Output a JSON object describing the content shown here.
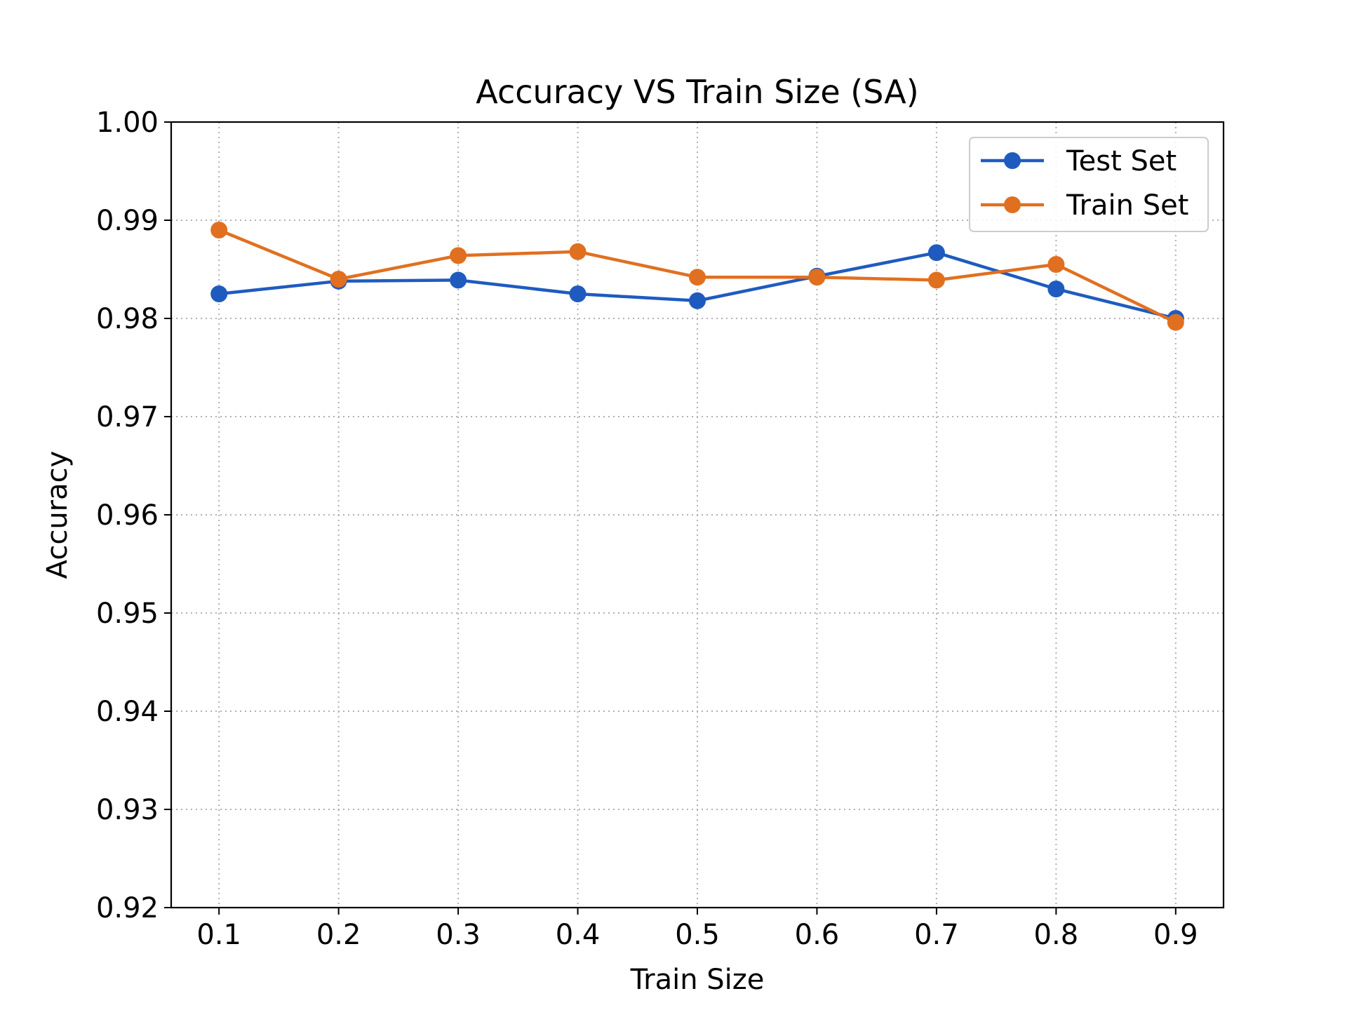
{
  "chart_data": {
    "type": "line",
    "title": "Accuracy VS Train Size (SA)",
    "xlabel": "Train Size",
    "ylabel": "Accuracy",
    "x": [
      0.1,
      0.2,
      0.3,
      0.4,
      0.5,
      0.6,
      0.7,
      0.8,
      0.9
    ],
    "x_tick_labels": [
      "0.1",
      "0.2",
      "0.3",
      "0.4",
      "0.5",
      "0.6",
      "0.7",
      "0.8",
      "0.9"
    ],
    "xlim": [
      0.06,
      0.94
    ],
    "ylim": [
      0.92,
      1.0
    ],
    "y_ticks": [
      0.92,
      0.93,
      0.94,
      0.95,
      0.96,
      0.97,
      0.98,
      0.99,
      1.0
    ],
    "y_tick_labels": [
      "0.92",
      "0.93",
      "0.94",
      "0.95",
      "0.96",
      "0.97",
      "0.98",
      "0.99",
      "1.00"
    ],
    "grid": true,
    "legend_position": "top-right",
    "series": [
      {
        "name": "Test Set",
        "color": "#1f5bbf",
        "values": [
          0.9825,
          0.9838,
          0.9839,
          0.9825,
          0.9818,
          0.9843,
          0.9867,
          0.983,
          0.98
        ]
      },
      {
        "name": "Train Set",
        "color": "#e07020",
        "values": [
          0.989,
          0.984,
          0.9864,
          0.9868,
          0.9842,
          0.9842,
          0.9839,
          0.9855,
          0.9796
        ]
      }
    ]
  }
}
